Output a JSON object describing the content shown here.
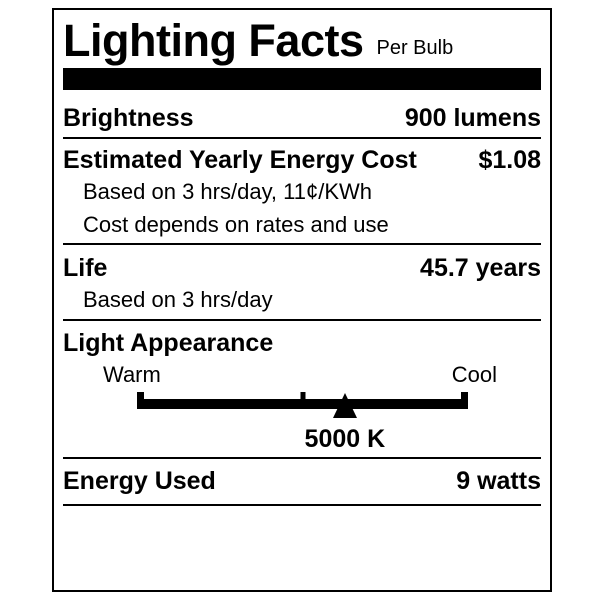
{
  "label": {
    "title": "Lighting Facts",
    "subtitle": "Per Bulb",
    "colors": {
      "ink": "#000000",
      "paper": "#ffffff"
    },
    "brightness": {
      "name": "Brightness",
      "value": "900 lumens"
    },
    "energy_cost": {
      "name": "Estimated Yearly Energy Cost",
      "value": "$1.08",
      "note1": "Based on 3 hrs/day, 11¢/KWh",
      "note2": "Cost depends on rates and use"
    },
    "life": {
      "name": "Life",
      "value": "45.7 years",
      "note": "Based on 3 hrs/day"
    },
    "light_appearance": {
      "name": "Light Appearance",
      "warm_label": "Warm",
      "cool_label": "Cool",
      "kelvin": "5000 K",
      "marker_percent": 62.8
    },
    "energy_used": {
      "name": "Energy Used",
      "value": "9 watts"
    }
  }
}
